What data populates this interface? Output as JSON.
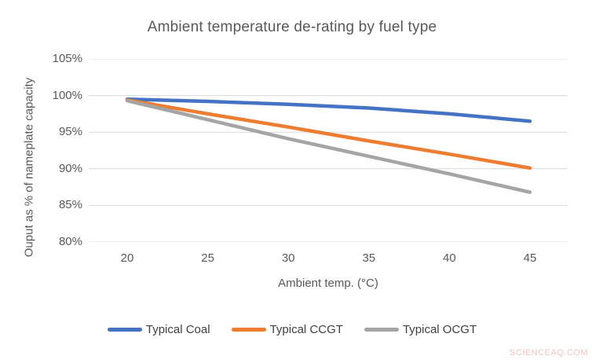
{
  "chart_data": {
    "type": "line",
    "title": "Ambient temperature de-rating by fuel type",
    "xlabel": "Ambient temp. (°C)",
    "ylabel": "Ouput as % of nameplate capacity",
    "x": [
      20,
      25,
      30,
      35,
      40,
      45
    ],
    "x_tick_labels": [
      "20",
      "25",
      "30",
      "35",
      "40",
      "45"
    ],
    "y_ticks": [
      105,
      100,
      95,
      90,
      85,
      80
    ],
    "y_tick_labels": [
      "105%",
      "100%",
      "95%",
      "90%",
      "85%",
      "80%"
    ],
    "xlim": [
      17.6,
      47.4
    ],
    "ylim": [
      80,
      105
    ],
    "grid": true,
    "legend_position": "bottom",
    "series": [
      {
        "name": "Typical Coal",
        "color": "#4472C4",
        "values": [
          99.5,
          99.2,
          98.8,
          98.3,
          97.5,
          96.5
        ]
      },
      {
        "name": "Typical CCGT",
        "color": "#ED7D31",
        "values": [
          99.4,
          97.5,
          95.7,
          93.8,
          92.0,
          90.1
        ]
      },
      {
        "name": "Typical OCGT",
        "color": "#A5A5A5",
        "values": [
          99.3,
          96.7,
          94.1,
          91.7,
          89.3,
          86.8
        ]
      }
    ]
  },
  "watermark": "SCIENCEAQ.COM",
  "colors": {
    "background": "#FFFFFF",
    "gridline": "#D9D9D9",
    "title_text": "#595959",
    "axis_text": "#595959",
    "legend_text": "#404040",
    "watermark_text": "#EFC5C2",
    "series_blue": "#4472C4",
    "series_orange": "#ED7D31",
    "series_gray": "#A5A5A5"
  }
}
